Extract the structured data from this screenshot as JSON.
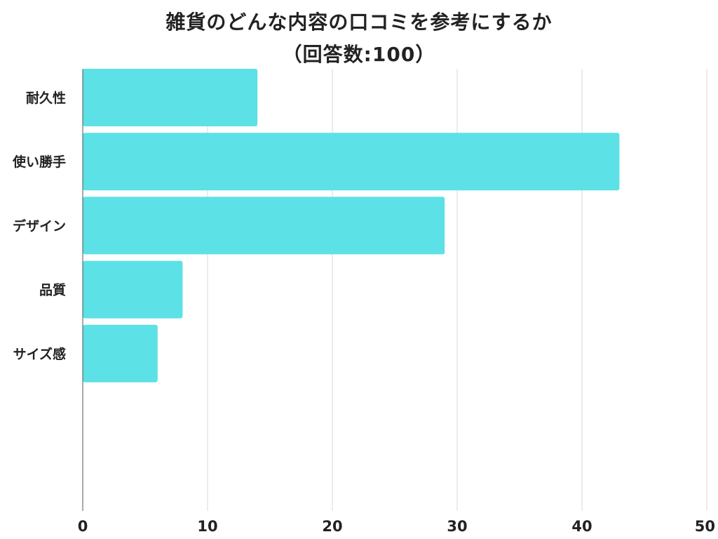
{
  "chart_data": {
    "type": "bar",
    "orientation": "horizontal",
    "title": "雑貨のどんな内容の口コミを参考にするか",
    "subtitle": "（回答数:100）",
    "categories": [
      "耐久性",
      "使い勝手",
      "デザイン",
      "品質",
      "サイズ感"
    ],
    "values": [
      14,
      43,
      29,
      8,
      6
    ],
    "xlim": [
      0,
      50
    ],
    "xticks": [
      0,
      10,
      20,
      30,
      40,
      50
    ],
    "grid": true,
    "legend": "none",
    "bar_color": "#5ce1e6",
    "grid_color": "#d9d9d9",
    "text_color": "#222222"
  }
}
